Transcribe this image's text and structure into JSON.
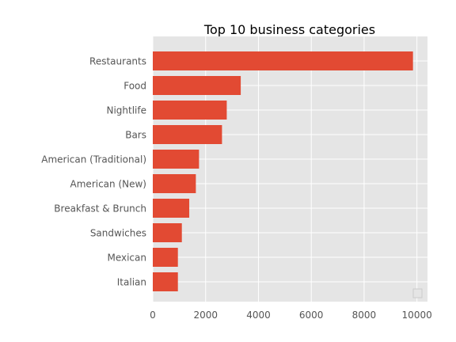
{
  "chart_data": {
    "type": "bar",
    "orientation": "horizontal",
    "title": "Top 10 business categories",
    "xlabel": "",
    "ylabel": "",
    "categories": [
      "Restaurants",
      "Food",
      "Nightlife",
      "Bars",
      "American (Traditional)",
      "American (New)",
      "Breakfast & Brunch",
      "Sandwiches",
      "Mexican",
      "Italian"
    ],
    "values": [
      9850,
      3330,
      2800,
      2620,
      1750,
      1630,
      1380,
      1100,
      950,
      950
    ],
    "xlim": [
      0,
      10400
    ],
    "xticks": [
      0,
      2000,
      4000,
      6000,
      8000,
      10000
    ],
    "grid": true,
    "legend": "lower-right, empty",
    "colors": {
      "bar": "#E24A33",
      "plot_background": "#E5E5E5",
      "grid": "#FFFFFF",
      "tick_label": "#555555",
      "title": "#000000"
    }
  }
}
